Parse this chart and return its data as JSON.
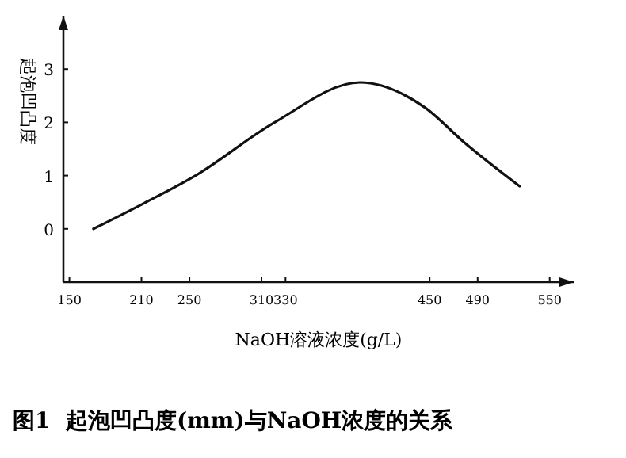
{
  "chart_data": {
    "type": "line",
    "xlabel": "NaOH溶液浓度(g/L)",
    "ylabel": "起泡凹凸度",
    "annotations": [
      "图1  起泡凹凸度(mm)与NaOH浓度的关系"
    ],
    "x": [
      170,
      212,
      255,
      321,
      392,
      446,
      479,
      525
    ],
    "series": [
      {
        "color": "#111111",
        "values": [
          0,
          0.48,
          1.0,
          2.0,
          2.75,
          2.28,
          1.62,
          0.8
        ]
      }
    ],
    "xlim": [
      145,
      570
    ],
    "xticks": [
      150,
      210,
      250,
      310,
      330,
      450,
      490,
      550
    ],
    "ylim": [
      -1,
      4
    ],
    "yticks": [
      0,
      1,
      2,
      3
    ],
    "grid": false,
    "marker": "none",
    "line_style": "solid"
  }
}
